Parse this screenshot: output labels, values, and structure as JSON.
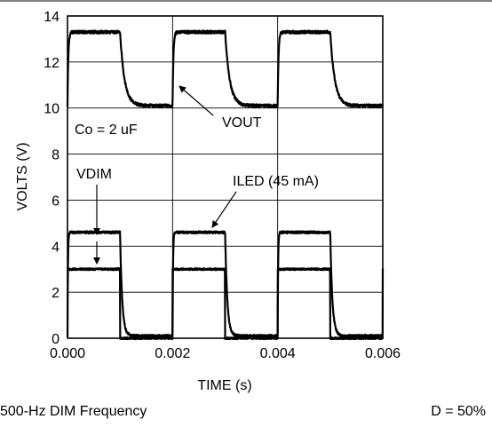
{
  "chart_data": {
    "type": "line",
    "xlabel": "TIME (s)",
    "ylabel": "VOLTS (V)",
    "xlim": [
      0,
      0.006
    ],
    "ylim": [
      0,
      14
    ],
    "x_ticks": [
      "0.000",
      "0.002",
      "0.004",
      "0.006"
    ],
    "y_ticks": [
      "0",
      "2",
      "4",
      "6",
      "8",
      "10",
      "12",
      "14"
    ],
    "grid": true,
    "period_s": 0.002,
    "duty": 0.5,
    "series": [
      {
        "name": "VOUT",
        "high": 13.3,
        "low": 10.1
      },
      {
        "name": "ILED (45 mA)",
        "high": 4.6,
        "low": 0.1
      },
      {
        "name": "VDIM",
        "high": 3.0,
        "low": 0.0
      }
    ],
    "annotations": {
      "capacitance": "Co = 2 uF",
      "vout": "VOUT",
      "iled": "ILED (45 mA)",
      "vdim": "VDIM"
    }
  },
  "footer": {
    "left": "500-Hz DIM Frequency",
    "right": "D = 50%"
  }
}
